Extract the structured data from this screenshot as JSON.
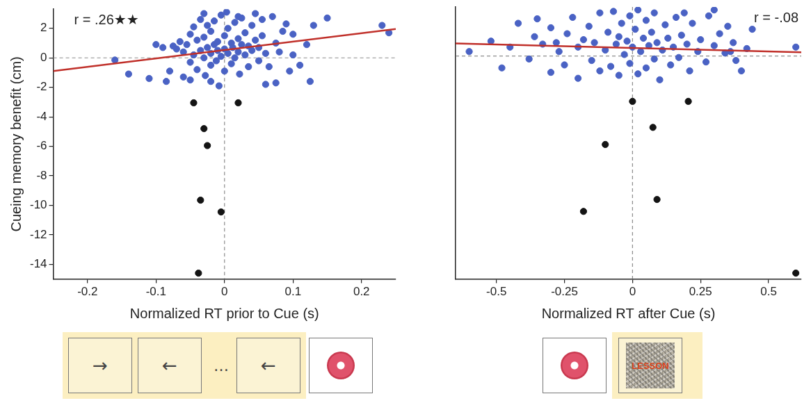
{
  "chart_data": [
    {
      "type": "scatter",
      "x_label": "Normalized RT prior to Cue (s)",
      "y_label": "Cueing memory benefit (cm)",
      "annotation": "r = .26★★",
      "xlim": [
        -0.25,
        0.25
      ],
      "xticks": [
        -0.2,
        -0.1,
        0,
        0.1,
        0.2
      ],
      "ylim": [
        -15,
        3.3
      ],
      "yticks": [
        -14,
        -12,
        -10,
        -8,
        -6,
        -4,
        -2,
        0,
        2
      ],
      "series": [
        {
          "color": "#4a62c4",
          "marker": "circle",
          "x": [
            -0.16,
            -0.14,
            -0.11,
            -0.09,
            -0.085,
            -0.08,
            -0.075,
            -0.07,
            -0.065,
            -0.06,
            -0.06,
            -0.055,
            -0.05,
            -0.05,
            -0.045,
            -0.045,
            -0.04,
            -0.04,
            -0.035,
            -0.035,
            -0.03,
            -0.03,
            -0.028,
            -0.025,
            -0.025,
            -0.02,
            -0.02,
            -0.02,
            -0.015,
            -0.015,
            -0.012,
            -0.01,
            -0.01,
            -0.008,
            -0.005,
            -0.005,
            0,
            0,
            0,
            0.003,
            0.005,
            0.005,
            0.01,
            0.01,
            0.012,
            0.015,
            0.015,
            0.02,
            0.02,
            0.022,
            0.025,
            0.025,
            0.03,
            0.03,
            0.035,
            0.035,
            0.04,
            0.04,
            0.045,
            0.045,
            0.05,
            0.05,
            0.055,
            0.055,
            0.06,
            0.065,
            0.07,
            0.075,
            0.075,
            0.08,
            0.09,
            0.1,
            0.1,
            0.11,
            0.12,
            0.125,
            0.13,
            0.15,
            0.23,
            0.24,
            -0.1,
            -0.02,
            0.06,
            -0.05,
            0.02,
            -0.03,
            0.085,
            0.095
          ],
          "y": [
            -0.15,
            -1.1,
            -1.4,
            0.7,
            -1.6,
            -0.9,
            0.8,
            0.6,
            1.1,
            -1.3,
            0.4,
            0.9,
            1.6,
            -0.3,
            0.2,
            2.1,
            1.2,
            -0.8,
            0.5,
            2.6,
            0,
            1.4,
            -1.2,
            0.7,
            2.2,
            0.3,
            1.8,
            -0.5,
            0.9,
            2.5,
            -0.2,
            1.1,
            0.5,
            -1.9,
            2.9,
            0.1,
            1.5,
            0.6,
            -0.9,
            3.1,
            0.3,
            2,
            1,
            -0.4,
            0.7,
            2.4,
            0,
            1.3,
            0.4,
            -1.1,
            0.9,
            2.7,
            0.2,
            1.7,
            -0.6,
            0.8,
            2.2,
            0.5,
            3,
            1.2,
            -0.2,
            0.7,
            2.6,
            1.5,
            0.3,
            -0.6,
            2.8,
            1,
            -1.7,
            0.4,
            2.3,
            1.6,
            0.2,
            -0.5,
            0.9,
            -1.6,
            2.2,
            2.7,
            2.2,
            1.7,
            0.9,
            -1.6,
            -1.8,
            -1.5,
            2.8,
            3,
            1.8,
            -0.9
          ]
        },
        {
          "color": "#141414",
          "marker": "circle",
          "x": [
            -0.045,
            0.02,
            -0.03,
            -0.025,
            -0.035,
            -0.005,
            -0.038
          ],
          "y": [
            -3.05,
            -3.05,
            -4.8,
            -5.95,
            -9.65,
            -10.45,
            -14.6
          ]
        },
        {
          "type": "line",
          "color": "#c0302a",
          "line_style": "solid",
          "x": [
            -0.25,
            0.25
          ],
          "y": [
            -0.9,
            1.95
          ]
        }
      ]
    },
    {
      "type": "scatter",
      "x_label": "Normalized RT after Cue (s)",
      "annotation": "r = -.08",
      "tick_labels": "x",
      "xlim": [
        -0.65,
        0.62
      ],
      "xticks": [
        -0.5,
        -0.25,
        0,
        0.25,
        0.5
      ],
      "ylim": [
        -15,
        3.3
      ],
      "yticks": [
        -14,
        -12,
        -10,
        -8,
        -6,
        -4,
        -2,
        0,
        2
      ],
      "series": [
        {
          "color": "#4a62c4",
          "marker": "circle",
          "x": [
            -0.6,
            -0.45,
            -0.42,
            -0.38,
            -0.36,
            -0.35,
            -0.33,
            -0.3,
            -0.3,
            -0.27,
            -0.25,
            -0.24,
            -0.22,
            -0.2,
            -0.2,
            -0.18,
            -0.16,
            -0.15,
            -0.14,
            -0.12,
            -0.12,
            -0.1,
            -0.09,
            -0.08,
            -0.07,
            -0.06,
            -0.05,
            -0.05,
            -0.04,
            -0.03,
            -0.02,
            -0.01,
            -0.01,
            0,
            0.01,
            0.02,
            0.02,
            0.03,
            0.04,
            0.05,
            0.05,
            0.06,
            0.07,
            0.08,
            0.08,
            0.09,
            0.1,
            0.11,
            0.12,
            0.13,
            0.14,
            0.15,
            0.16,
            0.17,
            0.18,
            0.2,
            0.21,
            0.22,
            0.24,
            0.25,
            0.27,
            0.28,
            0.3,
            0.3,
            0.32,
            0.34,
            0.35,
            0.37,
            0.4,
            0.42,
            0.44,
            0.6,
            -0.52,
            -0.48,
            0.38,
            0.36,
            -0.28,
            0.19
          ],
          "y": [
            0.3,
            0.6,
            2.2,
            -0.2,
            1.3,
            2.5,
            0.8,
            -1.1,
            1.9,
            0.3,
            -0.6,
            1.5,
            2.6,
            0.6,
            -1.5,
            1.1,
            2,
            -0.3,
            0.9,
            2.9,
            -1,
            0.4,
            1.6,
            -0.7,
            3,
            0.8,
            1.3,
            -1.3,
            2.2,
            0.1,
            1,
            2.7,
            -0.5,
            0.6,
            1.8,
            -1.2,
            3.1,
            0.3,
            1.2,
            2.4,
            -0.8,
            0.7,
            1.6,
            -0.2,
            2.9,
            0.9,
            -1.6,
            0.4,
            2.1,
            1.2,
            -0.6,
            0.6,
            2.6,
            -0.1,
            1.4,
            0.8,
            -1,
            2.2,
            0.3,
            1.1,
            -0.4,
            2.7,
            3.1,
            0.7,
            1.5,
            0.2,
            2,
            0.9,
            -1,
            0.5,
            1.8,
            0.6,
            1,
            -0.8,
            -0.3,
            0.3,
            0.9,
            2.9
          ]
        },
        {
          "color": "#141414",
          "marker": "circle",
          "x": [
            0,
            0.205,
            0.075,
            -0.1,
            0.09,
            -0.18,
            0.6
          ],
          "y": [
            -3.05,
            -3.05,
            -4.8,
            -5.95,
            -9.65,
            -10.45,
            -14.6
          ]
        },
        {
          "type": "line",
          "color": "#c0302a",
          "line_style": "solid",
          "x": [
            -0.65,
            0.62
          ],
          "y": [
            0.85,
            0.25
          ]
        }
      ]
    }
  ],
  "stimuli": {
    "before_cue": [
      "→",
      "←",
      "…",
      "←"
    ],
    "after_cue_text": "LESSON"
  }
}
